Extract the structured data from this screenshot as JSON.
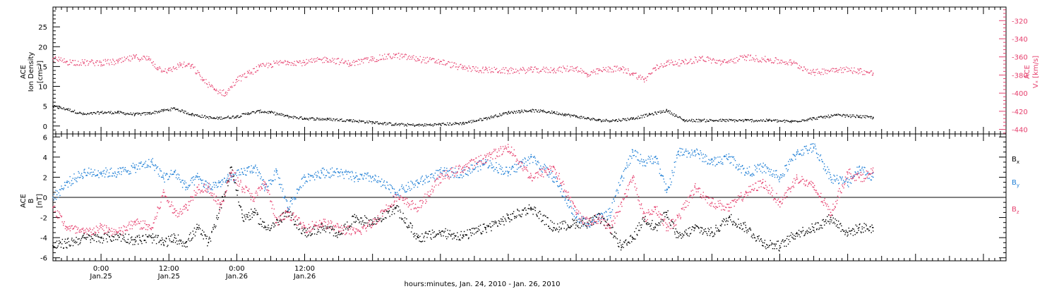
{
  "chart_data": [
    {
      "type": "scatter",
      "panel": "top",
      "ylabel": [
        "ACE",
        "Ion Density",
        "[cm⁻³]"
      ],
      "ylim": [
        -2,
        30
      ],
      "yticks": [
        0,
        5,
        10,
        15,
        20,
        25
      ],
      "y2label": [
        "ACE",
        "Vₓ [km/s]"
      ],
      "y2lim": [
        -445,
        -305
      ],
      "y2ticks": [
        -320,
        -340,
        -360,
        -380,
        -400,
        -420,
        -440
      ],
      "series": [
        {
          "name": "",
          "axis": "left",
          "color": "#000000",
          "x": [
            -8.5,
            -6,
            -3,
            0,
            3,
            6,
            8.5,
            11,
            13,
            16,
            20,
            24,
            26,
            28,
            30,
            33,
            36,
            40,
            44,
            48,
            52,
            56,
            60,
            64,
            68,
            72,
            74,
            76,
            78,
            80,
            82,
            84,
            86,
            88,
            91,
            94,
            97,
            100,
            103,
            106,
            110,
            114,
            118,
            122,
            126,
            130,
            134,
            136.5
          ],
          "y": [
            5,
            4.3,
            3,
            3.5,
            3.5,
            3,
            3.3,
            4,
            4.5,
            3,
            2,
            2.5,
            3.3,
            3.8,
            3.5,
            2.5,
            2,
            1.8,
            1.5,
            1,
            0.5,
            0.3,
            0.5,
            0.8,
            2,
            3.5,
            3.8,
            4,
            3.8,
            3.5,
            3,
            2.5,
            2,
            1.5,
            1.5,
            2,
            3,
            4,
            1.5,
            1.5,
            1.5,
            1.5,
            1.5,
            1.2,
            2,
            2.8,
            2.5,
            2.2
          ]
        },
        {
          "name": "",
          "axis": "right",
          "color": "#e6406e",
          "x": [
            -8.5,
            -6,
            -3,
            0,
            3,
            6,
            8.5,
            10,
            12,
            14,
            16,
            18,
            20,
            22,
            24,
            26,
            28,
            30,
            33,
            36,
            40,
            44,
            48,
            52,
            56,
            60,
            64,
            68,
            72,
            76,
            80,
            84,
            86,
            88,
            90,
            92,
            94,
            96,
            98,
            100,
            103,
            106,
            110,
            114,
            118,
            122,
            126,
            130,
            134,
            136.5
          ],
          "y": [
            -362,
            -365,
            -366,
            -366,
            -365,
            -360,
            -362,
            -372,
            -375,
            -368,
            -370,
            -385,
            -396,
            -400,
            -385,
            -378,
            -371,
            -368,
            -365,
            -366,
            -362,
            -367,
            -362,
            -358,
            -362,
            -365,
            -372,
            -374,
            -375,
            -374,
            -374,
            -372,
            -380,
            -375,
            -373,
            -373,
            -378,
            -385,
            -372,
            -366,
            -366,
            -361,
            -366,
            -360,
            -363,
            -366,
            -377,
            -373,
            -375,
            -378
          ]
        }
      ]
    },
    {
      "type": "scatter",
      "panel": "bottom",
      "ylabel": [
        "ACE",
        "B",
        "[nT]"
      ],
      "ylim": [
        -6.3,
        6.3
      ],
      "yticks": [
        -6,
        -4,
        -2,
        0,
        2,
        4,
        6
      ],
      "zero_line": true,
      "series": [
        {
          "name": "Bₓ",
          "color": "#000000",
          "x": [
            -8.5,
            -6,
            -3,
            0,
            3,
            6,
            9,
            11,
            13,
            15,
            17,
            19,
            21,
            23,
            25,
            27,
            29,
            31,
            33,
            36,
            39,
            42,
            45,
            48,
            52,
            56,
            60,
            64,
            68,
            72,
            76,
            80,
            84,
            86,
            88,
            90,
            92,
            94,
            96,
            98,
            100,
            102,
            105,
            108,
            111,
            114,
            117,
            120,
            123,
            126,
            129,
            132,
            134,
            136.5
          ],
          "y": [
            -4.8,
            -4.5,
            -4,
            -4,
            -3.8,
            -4.2,
            -4,
            -4.5,
            -4,
            -4.5,
            -3,
            -4.5,
            -1,
            3,
            -2,
            -1.5,
            -3,
            -2.5,
            -1.5,
            -3.5,
            -3,
            -3.5,
            -2,
            -2.5,
            -1,
            -4,
            -3.5,
            -3.8,
            -3,
            -2,
            -1,
            -3,
            -2.5,
            -2.5,
            -2,
            -3,
            -5,
            -4,
            -2,
            -3,
            -1.5,
            -4,
            -3,
            -3.5,
            -2,
            -3,
            -4.5,
            -4.8,
            -3.5,
            -3,
            -2,
            -3.5,
            -3,
            -3
          ]
        },
        {
          "name": "Bᵧ",
          "color": "#1f7fd6",
          "x": [
            -8.5,
            -6,
            -3,
            0,
            3,
            6,
            9,
            11,
            13,
            15,
            17,
            19,
            21,
            23,
            25,
            27,
            29,
            31,
            33,
            36,
            39,
            42,
            45,
            48,
            52,
            56,
            60,
            64,
            68,
            72,
            76,
            80,
            84,
            86,
            88,
            90,
            92,
            94,
            96,
            98,
            100,
            102,
            105,
            108,
            111,
            114,
            117,
            120,
            123,
            126,
            129,
            132,
            134,
            136.5
          ],
          "y": [
            0,
            1.5,
            2.5,
            2.5,
            2.5,
            3,
            3.5,
            2,
            2.5,
            1,
            2,
            1,
            1.5,
            2,
            2.5,
            3,
            1,
            2.5,
            -1,
            2,
            2.5,
            2.5,
            2,
            2,
            0.5,
            1.5,
            2.5,
            2.5,
            3.5,
            2.5,
            4,
            2,
            -2,
            -2.5,
            -2,
            -1.5,
            2,
            4.5,
            3.5,
            4,
            0.5,
            4.5,
            4.5,
            3.5,
            4,
            2.5,
            3,
            2,
            4.5,
            5,
            2,
            1.5,
            3,
            2
          ]
        },
        {
          "name": "B_z",
          "color": "#e6406e",
          "x": [
            -8.5,
            -6,
            -3,
            0,
            3,
            6,
            9,
            11,
            13,
            15,
            17,
            19,
            21,
            23,
            25,
            27,
            29,
            31,
            33,
            36,
            39,
            42,
            45,
            48,
            52,
            56,
            60,
            64,
            68,
            72,
            76,
            80,
            84,
            86,
            88,
            90,
            92,
            94,
            96,
            98,
            100,
            102,
            105,
            108,
            111,
            114,
            117,
            120,
            123,
            126,
            129,
            132,
            134,
            136.5
          ],
          "y": [
            -1,
            -3,
            -3.5,
            -3,
            -3.5,
            -2.5,
            -3,
            0.5,
            -1.5,
            -1,
            1,
            1,
            -1,
            2.5,
            1,
            0,
            1.5,
            -2.5,
            -1.5,
            -3,
            -2.5,
            -3,
            -3.5,
            -2.5,
            0,
            -1,
            2,
            3,
            4,
            5,
            2,
            3,
            -1.5,
            -2.5,
            -2,
            -3,
            -0.5,
            2,
            -2,
            -1,
            -3,
            -2,
            1,
            -0.5,
            -1,
            0.5,
            1.5,
            -0.5,
            2,
            1,
            -1.5,
            2.5,
            2,
            2.5
          ]
        }
      ]
    }
  ],
  "x_axis": {
    "xlim": [
      -8.5,
      160
    ],
    "ticks": [
      {
        "x": 0,
        "time": "0:00",
        "date": "Jan.25"
      },
      {
        "x": 12,
        "time": "12:00",
        "date": "Jan.25"
      },
      {
        "x": 24,
        "time": "0:00",
        "date": "Jan.26"
      },
      {
        "x": 36,
        "time": "12:00",
        "date": "Jan.26"
      }
    ],
    "label": "hours:minutes, Jan. 24, 2010 - Jan. 26, 2010"
  },
  "legend_bottom": [
    {
      "text": "B",
      "sub": "x",
      "color": "#000000"
    },
    {
      "text": "B",
      "sub": "y",
      "color": "#1f7fd6"
    },
    {
      "text": "B",
      "sub": "z",
      "color": "#e6406e"
    }
  ]
}
